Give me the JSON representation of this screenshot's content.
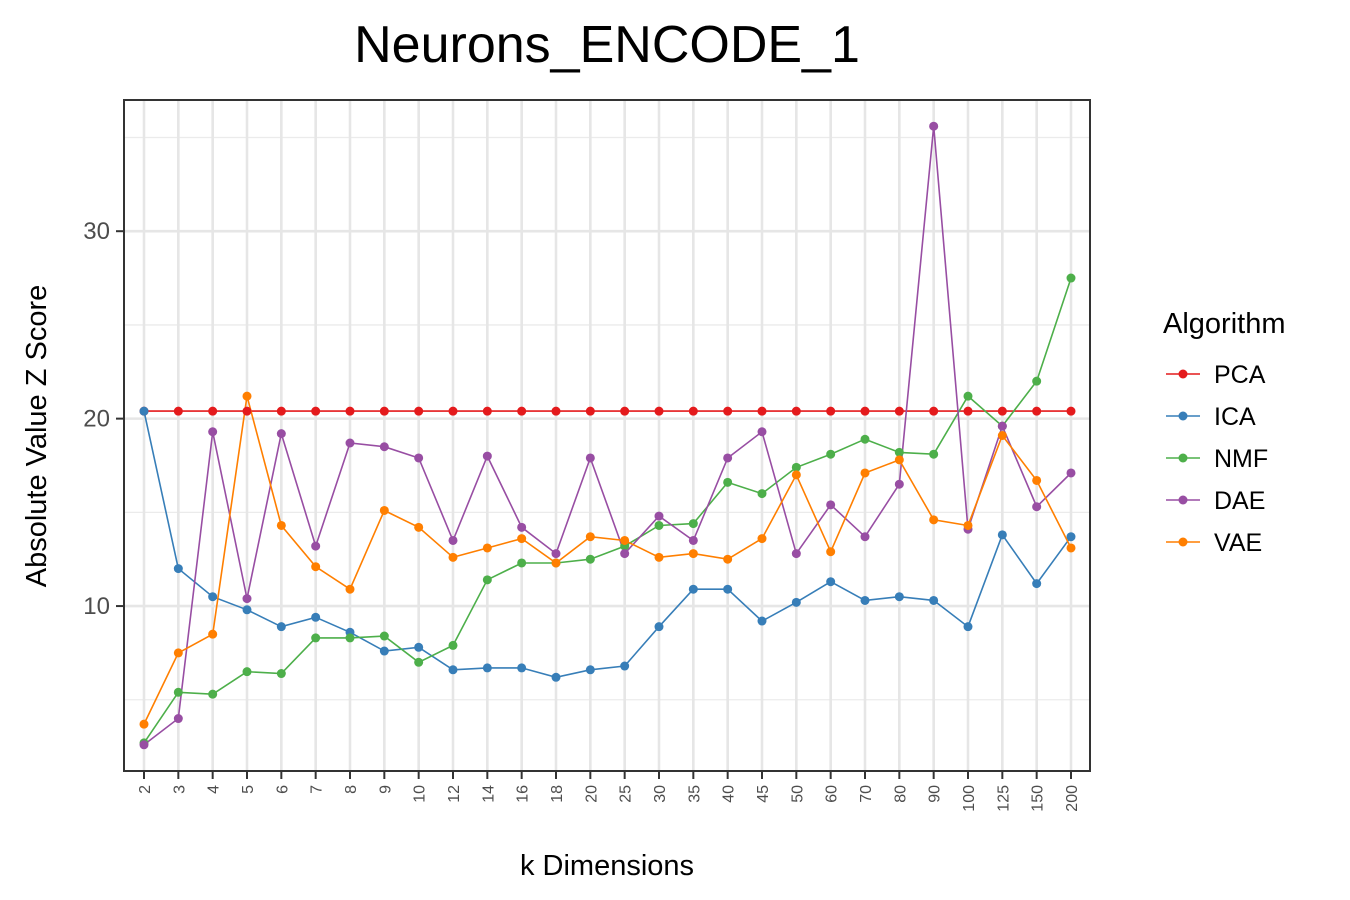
{
  "chart_data": {
    "type": "line",
    "title": "Neurons_ENCODE_1",
    "xlabel": "k Dimensions",
    "ylabel": "Absolute Value Z Score",
    "categories": [
      "2",
      "3",
      "4",
      "5",
      "6",
      "7",
      "8",
      "9",
      "10",
      "12",
      "14",
      "16",
      "18",
      "20",
      "25",
      "30",
      "35",
      "40",
      "45",
      "50",
      "60",
      "70",
      "80",
      "90",
      "100",
      "125",
      "150",
      "200"
    ],
    "y_ticks": [
      10,
      20,
      30
    ],
    "ylim": [
      1.2,
      37.0
    ],
    "grid": true,
    "legend": {
      "title": "Algorithm",
      "position": "right"
    },
    "series": [
      {
        "name": "PCA",
        "color": "#E41A1C",
        "values": [
          20.4,
          20.4,
          20.4,
          20.4,
          20.4,
          20.4,
          20.4,
          20.4,
          20.4,
          20.4,
          20.4,
          20.4,
          20.4,
          20.4,
          20.4,
          20.4,
          20.4,
          20.4,
          20.4,
          20.4,
          20.4,
          20.4,
          20.4,
          20.4,
          20.4,
          20.4,
          20.4,
          20.4
        ]
      },
      {
        "name": "ICA",
        "color": "#377EB8",
        "values": [
          20.4,
          12.0,
          10.5,
          9.8,
          8.9,
          9.4,
          8.6,
          7.6,
          7.8,
          6.6,
          6.7,
          6.7,
          6.2,
          6.6,
          6.8,
          8.9,
          10.9,
          10.9,
          9.2,
          10.2,
          11.3,
          10.3,
          10.5,
          10.3,
          8.9,
          13.8,
          11.2,
          13.7
        ]
      },
      {
        "name": "NMF",
        "color": "#4DAF4A",
        "values": [
          2.7,
          5.4,
          5.3,
          6.5,
          6.4,
          8.3,
          8.3,
          8.4,
          7.0,
          7.9,
          11.4,
          12.3,
          12.3,
          12.5,
          13.2,
          14.3,
          14.4,
          16.6,
          16.0,
          17.4,
          18.1,
          18.9,
          18.2,
          18.1,
          21.2,
          19.6,
          22.0,
          27.5
        ]
      },
      {
        "name": "DAE",
        "color": "#984EA3",
        "values": [
          2.6,
          4.0,
          19.3,
          10.4,
          19.2,
          13.2,
          18.7,
          18.5,
          17.9,
          13.5,
          18.0,
          14.2,
          12.8,
          17.9,
          12.8,
          14.8,
          13.5,
          17.9,
          19.3,
          12.8,
          15.4,
          13.7,
          16.5,
          35.6,
          14.1,
          19.6,
          15.3,
          17.1
        ]
      },
      {
        "name": "VAE",
        "color": "#FF7F00",
        "values": [
          3.7,
          7.5,
          8.5,
          21.2,
          14.3,
          12.1,
          10.9,
          15.1,
          14.2,
          12.6,
          13.1,
          13.6,
          12.3,
          13.7,
          13.5,
          12.6,
          12.8,
          12.5,
          13.6,
          17.0,
          12.9,
          17.1,
          17.8,
          14.6,
          14.3,
          19.1,
          16.7,
          13.1
        ]
      }
    ]
  }
}
